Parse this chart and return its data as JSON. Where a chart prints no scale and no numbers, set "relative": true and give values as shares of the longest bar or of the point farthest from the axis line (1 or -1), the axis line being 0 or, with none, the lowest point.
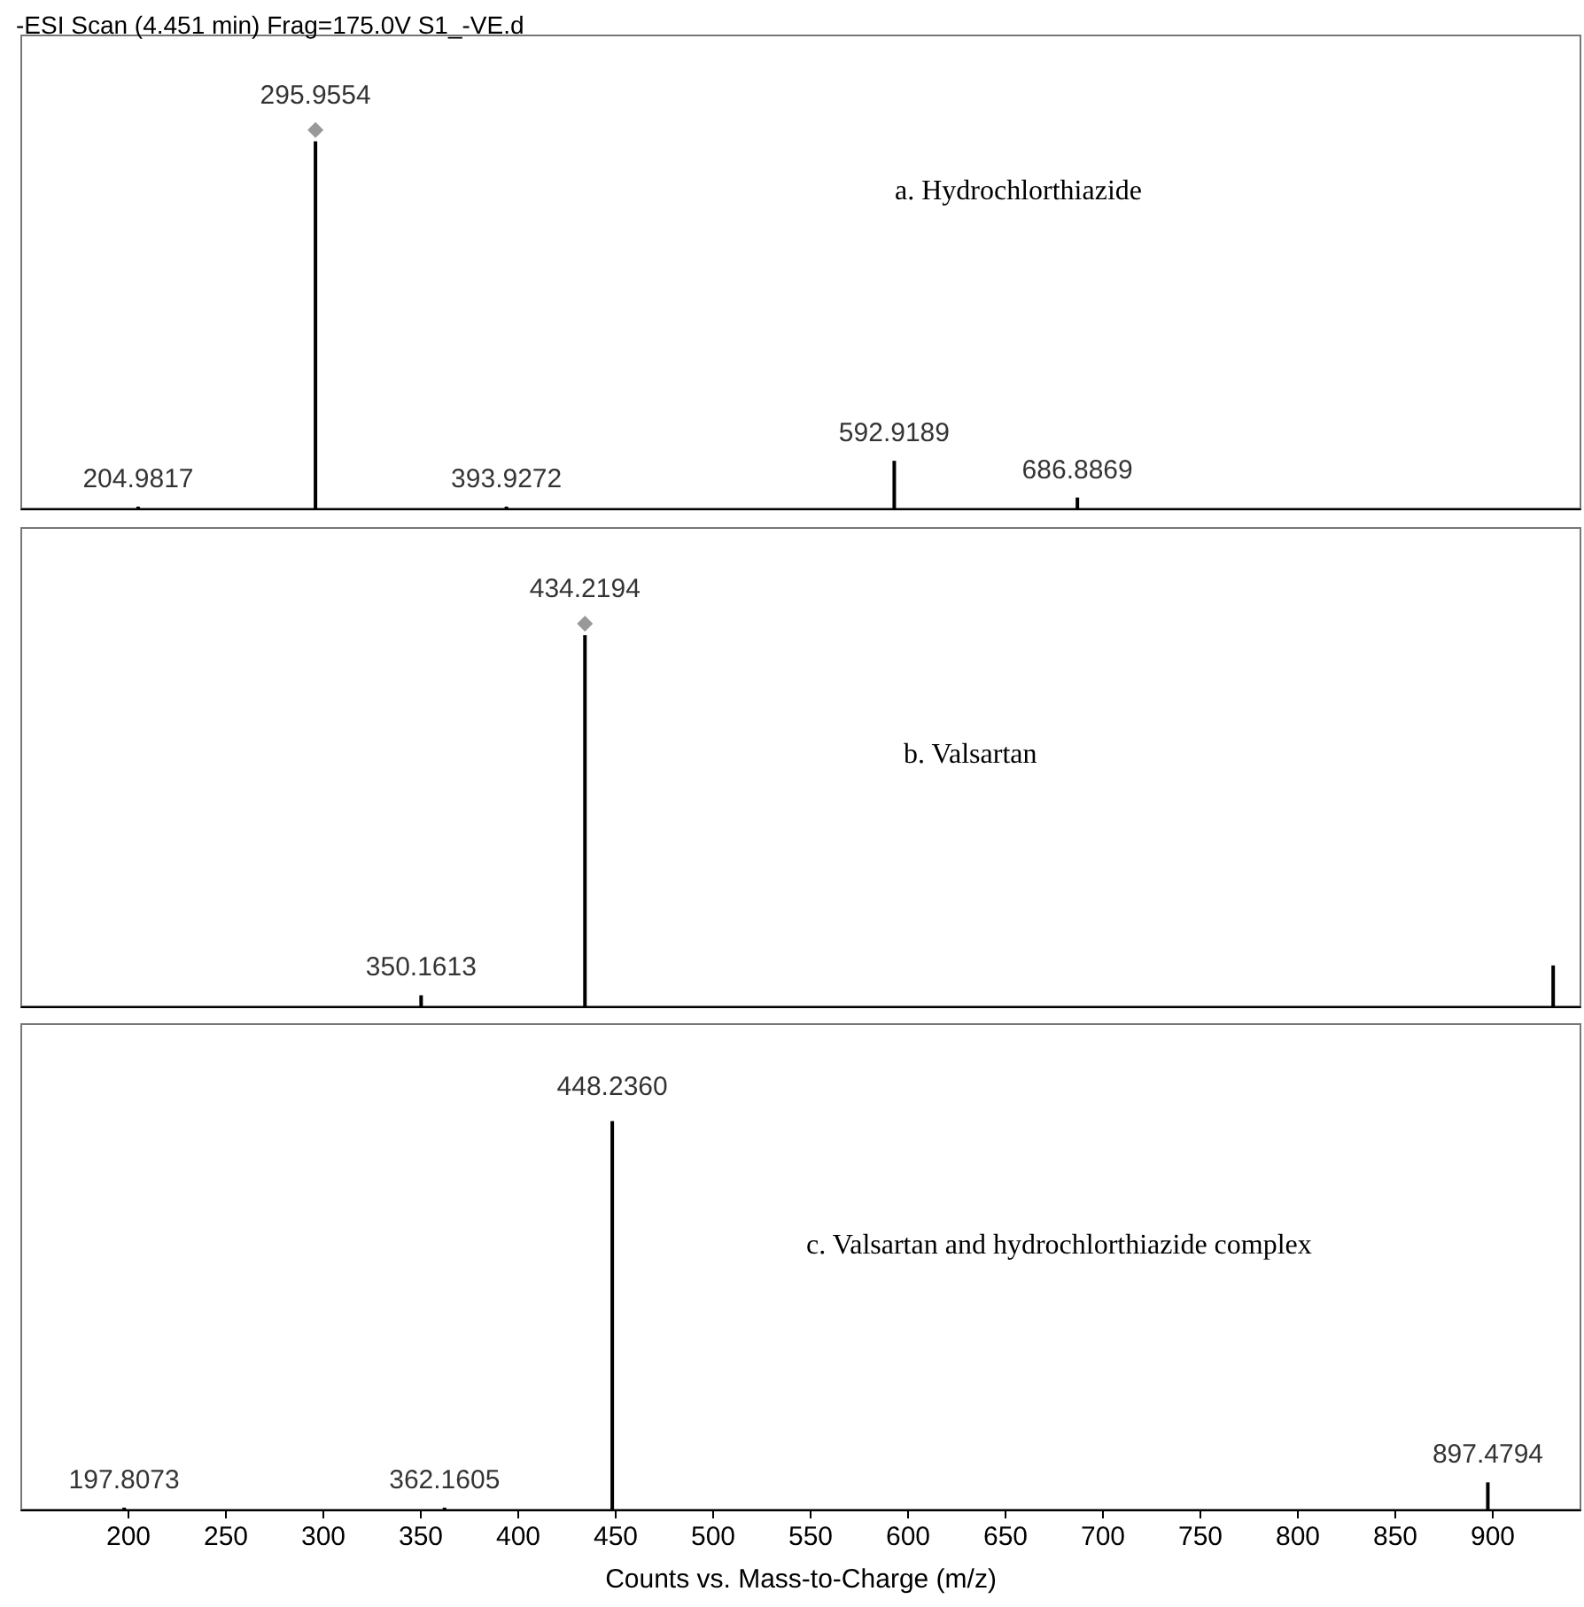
{
  "chart_data": [
    {
      "type": "bar",
      "title": "-ESI Scan (4.451 min) Frag=175.0V S1_-VE.d",
      "relative": true,
      "xlim": [
        145,
        945
      ],
      "tick_labels": false,
      "annotations": [
        "a. Hydrochlorthiazide",
        {
          "text": "204.9817",
          "x": 204.9817,
          "y": 0.005
        },
        {
          "text": "295.9554",
          "x": 295.9554,
          "y": 1
        },
        {
          "text": "393.9272",
          "x": 393.9272,
          "y": 0.005
        },
        {
          "text": "592.9189",
          "x": 592.9189,
          "y": 0.126
        },
        {
          "text": "686.8869",
          "x": 686.8869,
          "y": 0.029
        }
      ],
      "series": [
        {
          "color": "#000000",
          "x": [
            204.9817,
            295.9554,
            393.9272,
            592.9189,
            686.8869
          ],
          "values": [
            0.005,
            0.97,
            0.005,
            0.126,
            0.029
          ]
        },
        {
          "type": "scatter",
          "color": "#808080",
          "marker": "diamond",
          "x": [
            295.9554
          ],
          "values": [
            1
          ]
        }
      ]
    },
    {
      "type": "bar",
      "relative": true,
      "xlim": [
        145,
        945
      ],
      "tick_labels": false,
      "annotations": [
        "b. Valsartan",
        {
          "text": "350.1613",
          "x": 350.1613,
          "y": 0.029
        },
        {
          "text": "434.2194",
          "x": 434.2194,
          "y": 1
        }
      ],
      "series": [
        {
          "color": "#000000",
          "x": [
            350.1613,
            434.2194,
            931
          ],
          "values": [
            0.029,
            0.97,
            0.107
          ]
        },
        {
          "type": "scatter",
          "color": "#808080",
          "marker": "diamond",
          "x": [
            434.2194
          ],
          "values": [
            1
          ]
        }
      ]
    },
    {
      "type": "bar",
      "xlabel": "Counts vs. Mass-to-Charge (m/z)",
      "relative": true,
      "xlim": [
        145,
        945
      ],
      "xticks": [
        200,
        250,
        300,
        350,
        400,
        450,
        500,
        550,
        600,
        650,
        700,
        750,
        800,
        850,
        900
      ],
      "tick_labels": "x",
      "annotations": [
        "c. Valsartan and hydrochlorthiazide complex",
        {
          "text": "197.8073",
          "x": 197.8073,
          "y": 0.005
        },
        {
          "text": "362.1605",
          "x": 362.1605,
          "y": 0.005
        },
        {
          "text": "448.2360",
          "x": 448.236,
          "y": 1
        },
        {
          "text": "897.4794",
          "x": 897.4794,
          "y": 0.07
        }
      ],
      "series": [
        {
          "color": "#000000",
          "x": [
            197.8073,
            362.1605,
            448.236,
            897.4794
          ],
          "values": [
            0.005,
            0.005,
            1,
            0.07
          ]
        }
      ]
    }
  ]
}
